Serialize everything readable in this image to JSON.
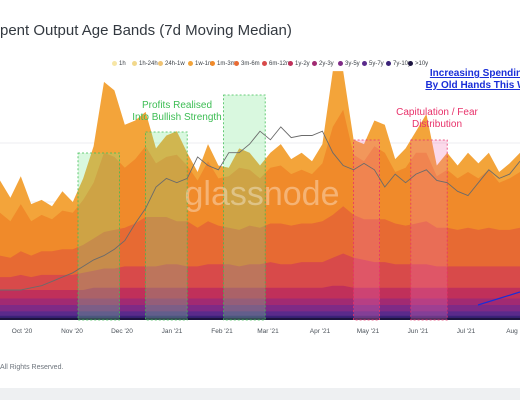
{
  "page": {
    "title": "pent Output Age Bands (7d Moving Median)",
    "footer": "All Rights Reserved."
  },
  "chart_data": {
    "type": "area",
    "title": "pent Output Age Bands (7d Moving Median)",
    "x_ticks": [
      "Oct '20",
      "Nov '20",
      "Dec '20",
      "Jan '21",
      "Feb '21",
      "Mar '21",
      "Apr '21",
      "May '21",
      "Jun '21",
      "Jul '21",
      "Aug"
    ],
    "legend": [
      {
        "name": "1h",
        "color": "#f7e6a6"
      },
      {
        "name": "1h-24h",
        "color": "#f2d88c"
      },
      {
        "name": "24h-1w",
        "color": "#f0c372"
      },
      {
        "name": "1w-1m",
        "color": "#f3a43a"
      },
      {
        "name": "1m-3m",
        "color": "#f08a2a"
      },
      {
        "name": "3m-6m",
        "color": "#e76a33"
      },
      {
        "name": "6m-12m",
        "color": "#d84a4a"
      },
      {
        "name": "1y-2y",
        "color": "#c0305a"
      },
      {
        "name": "2y-3y",
        "color": "#a12a72"
      },
      {
        "name": "3y-5y",
        "color": "#7e2a86"
      },
      {
        "name": "5y-7y",
        "color": "#5a2a8c"
      },
      {
        "name": "7y-10y",
        "color": "#3a2278"
      },
      {
        "name": ">10y",
        "color": "#1c1440"
      }
    ],
    "x": [
      0,
      2,
      4,
      6,
      8,
      10,
      12,
      14,
      16,
      18,
      20,
      22,
      24,
      26,
      28,
      30,
      32,
      34,
      36,
      38,
      40,
      42,
      44,
      46,
      48,
      50,
      52,
      54,
      56,
      58,
      60,
      62,
      64,
      66,
      68,
      70,
      72,
      74,
      76,
      78,
      80,
      82,
      84,
      86,
      88,
      90,
      92,
      94,
      96,
      98,
      100
    ],
    "series": [
      {
        "name": "1w-1m",
        "values": [
          15,
          11,
          13,
          8,
          7,
          6,
          9,
          5,
          10,
          17,
          33,
          31,
          20,
          18,
          16,
          7,
          10,
          11,
          6,
          4,
          8,
          6,
          4,
          9,
          8,
          6,
          7,
          10,
          7,
          8,
          6,
          9,
          26,
          18,
          7,
          8,
          12,
          13,
          6,
          9,
          10,
          18,
          5,
          8,
          6,
          9,
          7,
          8,
          5,
          7,
          9
        ]
      },
      {
        "name": "1m-3m",
        "values": [
          20,
          17,
          22,
          16,
          17,
          15,
          18,
          17,
          21,
          26,
          37,
          34,
          28,
          30,
          33,
          25,
          28,
          31,
          26,
          22,
          28,
          22,
          24,
          29,
          26,
          23,
          26,
          27,
          24,
          25,
          23,
          27,
          41,
          45,
          28,
          27,
          34,
          31,
          24,
          27,
          33,
          32,
          24,
          27,
          24,
          26,
          24,
          27,
          22,
          24,
          26
        ]
      },
      {
        "name": "3m-6m",
        "values": [
          10,
          9,
          11,
          10,
          11,
          11,
          12,
          12,
          13,
          15,
          17,
          18,
          18,
          20,
          23,
          23,
          22,
          20,
          21,
          18,
          20,
          18,
          17,
          17,
          18,
          17,
          18,
          19,
          18,
          18,
          18,
          19,
          20,
          22,
          20,
          19,
          20,
          20,
          19,
          18,
          19,
          20,
          18,
          18,
          17,
          18,
          17,
          18,
          17,
          17,
          18
        ]
      },
      {
        "name": "6m-12m",
        "values": [
          6,
          6,
          7,
          6,
          7,
          7,
          7,
          7,
          8,
          8,
          9,
          9,
          10,
          10,
          10,
          10,
          11,
          11,
          10,
          10,
          11,
          11,
          11,
          10,
          11,
          11,
          12,
          11,
          11,
          12,
          12,
          12,
          13,
          15,
          14,
          13,
          12,
          12,
          11,
          11,
          11,
          11,
          10,
          10,
          10,
          10,
          10,
          10,
          10,
          10,
          10
        ]
      },
      {
        "name": "1y-2y",
        "values": [
          4,
          4,
          4,
          4,
          4,
          4,
          4,
          4,
          4,
          5,
          5,
          5,
          5,
          5,
          5,
          5,
          5,
          5,
          5,
          5,
          5,
          5,
          5,
          5,
          5,
          5,
          5,
          5,
          5,
          5,
          5,
          5,
          6,
          6,
          5,
          5,
          5,
          5,
          5,
          5,
          5,
          5,
          5,
          5,
          5,
          5,
          5,
          5,
          5,
          5,
          5
        ]
      },
      {
        "name": "2y-3y",
        "values": [
          3,
          3,
          3,
          3,
          3,
          3,
          3,
          3,
          3,
          3,
          3,
          3,
          3,
          3,
          3,
          3,
          3,
          3,
          3,
          3,
          3,
          3,
          3,
          3,
          3,
          3,
          3,
          3,
          3,
          3,
          3,
          3,
          3,
          3,
          3,
          3,
          3,
          3,
          3,
          3,
          3,
          3,
          3,
          3,
          3,
          3,
          3,
          3,
          3,
          3,
          3
        ]
      },
      {
        "name": "3y-5y",
        "values": [
          3,
          3,
          3,
          3,
          3,
          3,
          3,
          3,
          3,
          3,
          3,
          3,
          3,
          3,
          3,
          3,
          3,
          3,
          3,
          3,
          3,
          3,
          3,
          3,
          3,
          3,
          3,
          3,
          3,
          3,
          3,
          3,
          3,
          3,
          3,
          3,
          3,
          3,
          3,
          3,
          3,
          3,
          3,
          3,
          3,
          3,
          3,
          3,
          3,
          3,
          3
        ]
      },
      {
        "name": "5y-7y",
        "values": [
          2,
          2,
          2,
          2,
          2,
          2,
          2,
          2,
          2,
          2,
          2,
          2,
          2,
          2,
          2,
          2,
          2,
          2,
          2,
          2,
          2,
          2,
          2,
          2,
          2,
          2,
          2,
          2,
          2,
          2,
          2,
          2,
          2,
          2,
          2,
          2,
          2,
          2,
          2,
          2,
          2,
          2,
          2,
          2,
          2,
          2,
          2,
          2,
          2,
          2,
          2
        ]
      },
      {
        "name": "7y-10y",
        "values": [
          1,
          1,
          1,
          1,
          1,
          1,
          1,
          1,
          1,
          1,
          1,
          1,
          1,
          1,
          1,
          1,
          1,
          1,
          1,
          1,
          1,
          1,
          1,
          1,
          1,
          1,
          1,
          1,
          1,
          1,
          1,
          1,
          1,
          1,
          1,
          1,
          1,
          1,
          1,
          1,
          1,
          1,
          1,
          1,
          1,
          1,
          1,
          1,
          1,
          1,
          1
        ]
      },
      {
        "name": ">10y",
        "values": [
          1,
          1,
          1,
          1,
          1,
          1,
          1,
          1,
          1,
          1,
          1,
          1,
          1,
          1,
          1,
          1,
          1,
          1,
          1,
          1,
          1,
          1,
          1,
          1,
          1,
          1,
          1,
          1,
          1,
          1,
          1,
          1,
          1,
          1,
          1,
          1,
          1,
          1,
          1,
          1,
          1,
          1,
          1,
          1,
          1,
          1,
          1,
          1,
          1,
          1,
          1
        ]
      }
    ],
    "price": [
      14,
      14,
      14,
      15,
      16,
      18,
      20,
      22,
      25,
      28,
      30,
      33,
      37,
      45,
      52,
      62,
      66,
      64,
      66,
      76,
      72,
      70,
      78,
      78,
      82,
      88,
      84,
      90,
      85,
      86,
      86,
      88,
      78,
      72,
      70,
      73,
      70,
      62,
      68,
      64,
      68,
      70,
      65,
      64,
      60,
      58,
      64,
      70,
      66,
      68,
      74
    ],
    "y_max": 110,
    "annotations": [
      {
        "text_lines": [
          "Profits Realised",
          "Into Bullish Strength"
        ],
        "color": "#3dbd54"
      },
      {
        "text_lines": [
          "Capitulation / Fear",
          "Distribution"
        ],
        "color": "#e8316a"
      },
      {
        "text_lines": [
          "Increasing Spendin",
          "By Old Hands This W"
        ],
        "color": "#1a2ed8"
      }
    ],
    "highlight_ranges": [
      {
        "from": 30,
        "to": 46,
        "color": "green"
      },
      {
        "from": 56,
        "to": 72,
        "color": "green"
      },
      {
        "from": 86,
        "to": 102,
        "color": "green"
      },
      {
        "from": 136,
        "to": 146,
        "color": "pink"
      },
      {
        "from": 158,
        "to": 172,
        "color": "pink"
      }
    ],
    "watermark": "glassnode"
  }
}
